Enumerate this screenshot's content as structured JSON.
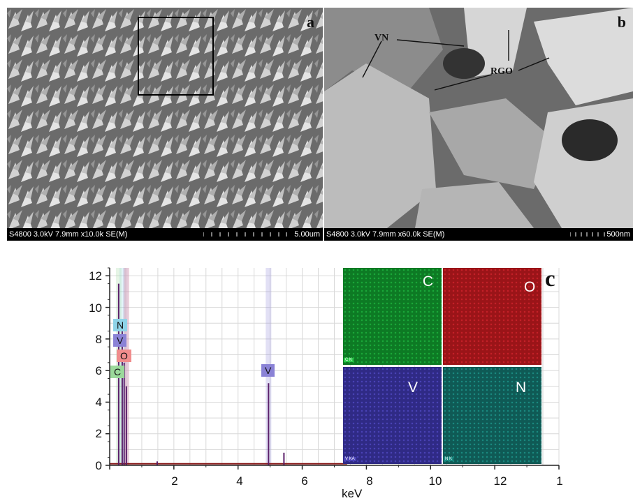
{
  "panel_a": {
    "label": "a",
    "info_bar": "S4800 3.0kV 7.9mm x10.0k SE(M)",
    "scale": "5.00um"
  },
  "panel_b": {
    "label": "b",
    "info_bar": "S4800 3.0kV 7.9mm x60.0k SE(M)",
    "scale": "500nm",
    "annotations": {
      "vn": "VN",
      "rgo": "RGO"
    }
  },
  "panel_c": {
    "label": "c",
    "maps": [
      {
        "element": "C",
        "color": "#0d7a24",
        "tag": "C K"
      },
      {
        "element": "O",
        "color": "#9a1418",
        "tag": ""
      },
      {
        "element": "V",
        "color": "#2f2a85",
        "tag": "V KA"
      },
      {
        "element": "N",
        "color": "#0f5a55",
        "tag": "N K"
      }
    ]
  },
  "chart_data": {
    "type": "line",
    "xlabel": "keV",
    "ylabel": "",
    "xlim": [
      0,
      14
    ],
    "ylim": [
      0,
      12.5
    ],
    "x_ticks": [
      "2",
      "4",
      "6",
      "8",
      "10",
      "12",
      "1"
    ],
    "y_ticks": [
      "0",
      "2",
      "4",
      "6",
      "8",
      "10",
      "12"
    ],
    "grid": true,
    "peak_labels": [
      {
        "element": "N",
        "x": 0.39,
        "color": "#8fd3e8"
      },
      {
        "element": "V",
        "x": 0.51,
        "color": "#8a82d6"
      },
      {
        "element": "O",
        "x": 0.52,
        "color": "#f08c8c"
      },
      {
        "element": "C",
        "x": 0.28,
        "color": "#9bd99b"
      },
      {
        "element": "V",
        "x": 4.95,
        "color": "#8a82d6"
      }
    ],
    "peaks": [
      {
        "x": 0.28,
        "y": 11.5
      },
      {
        "x": 0.39,
        "y": 9.0
      },
      {
        "x": 0.45,
        "y": 6.5
      },
      {
        "x": 0.52,
        "y": 5.0
      },
      {
        "x": 1.48,
        "y": 0.25
      },
      {
        "x": 4.95,
        "y": 5.2
      },
      {
        "x": 5.43,
        "y": 0.8
      }
    ]
  }
}
